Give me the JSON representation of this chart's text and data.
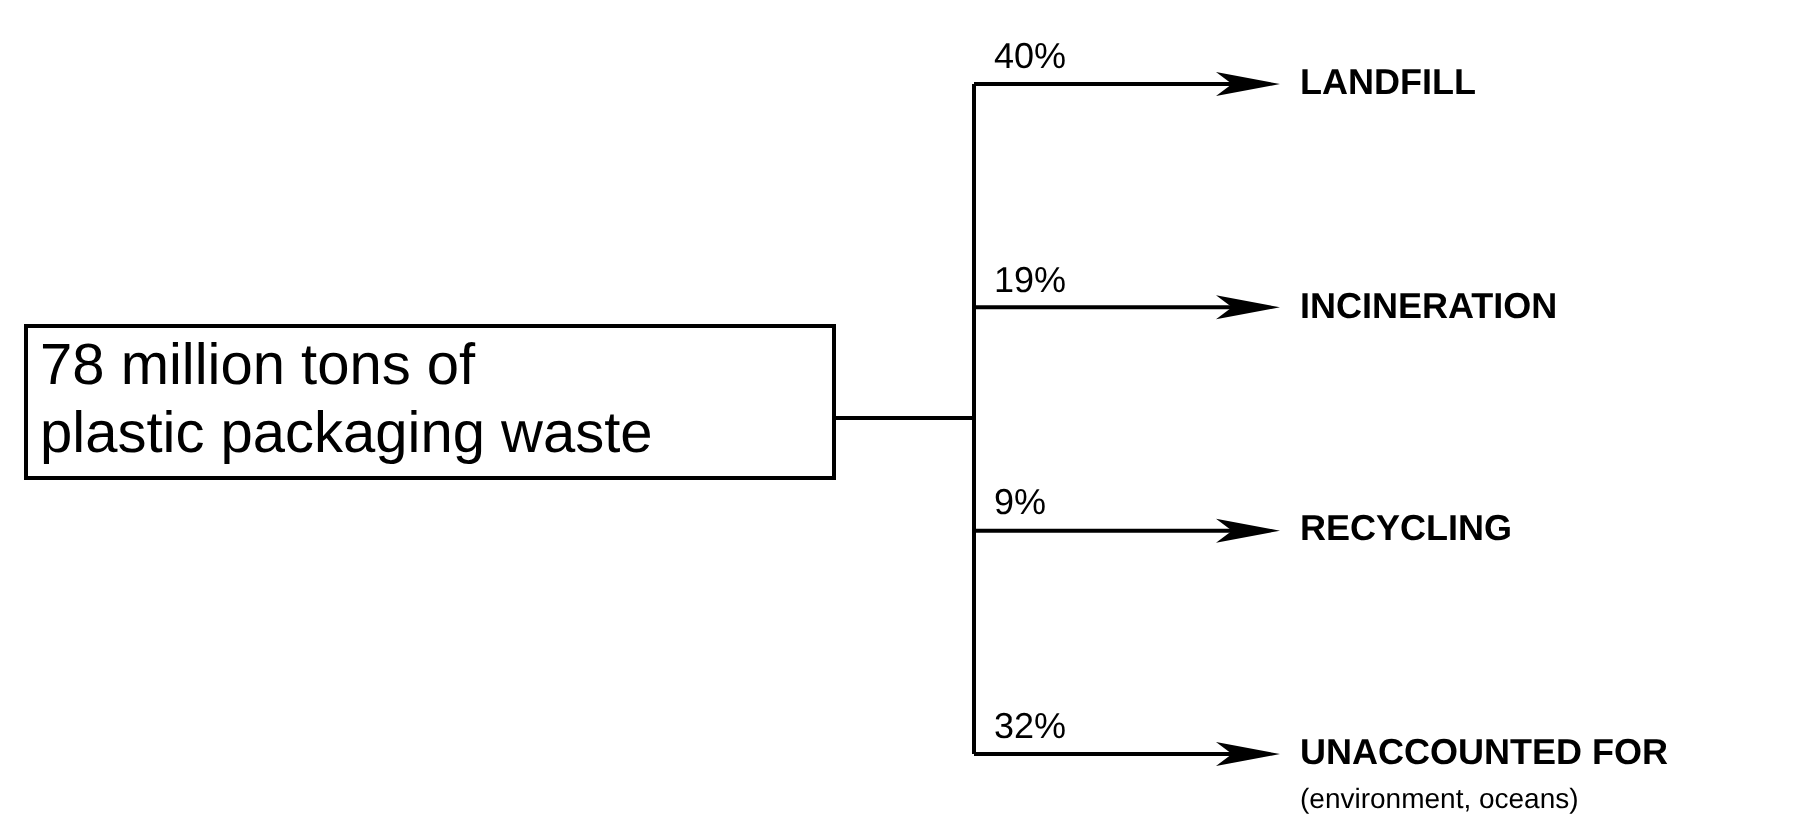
{
  "chart_data": {
    "type": "other",
    "title": "78 million tons of plastic packaging waste",
    "categories": [
      "LANDFILL",
      "INCINERATION",
      "RECYCLING",
      "UNACCOUNTED FOR"
    ],
    "values": [
      40,
      19,
      9,
      32
    ],
    "value_labels": [
      "40%",
      "19%",
      "9%",
      "32%"
    ],
    "annotations": [
      {
        "text": "(environment, oceans)",
        "x": "UNACCOUNTED FOR"
      }
    ]
  }
}
